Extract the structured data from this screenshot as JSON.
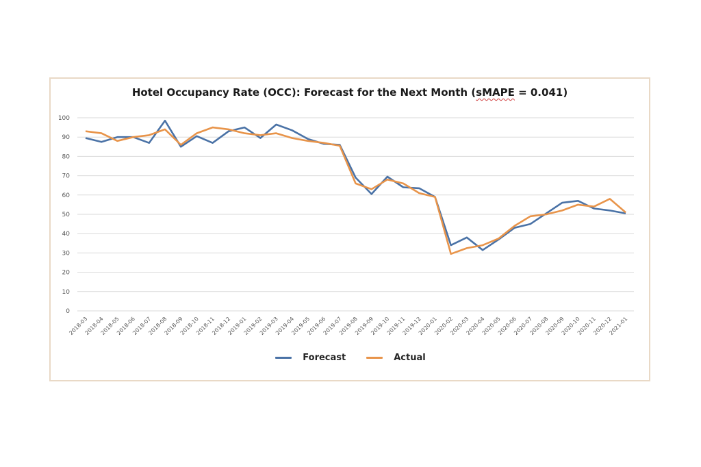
{
  "chart_data": {
    "type": "line",
    "title": "Hotel Occupancy Rate (OCC): Forecast for the Next Month (sMAPE = 0.041)",
    "title_parts": {
      "prefix": "Hotel Occupancy Rate (OCC): Forecast for the Next Month (",
      "underlined": "sMAPE",
      "suffix": " = 0.041)"
    },
    "xlabel": "",
    "ylabel": "",
    "ylim": [
      0,
      100
    ],
    "yticks": [
      0,
      10,
      20,
      30,
      40,
      50,
      60,
      70,
      80,
      90,
      100
    ],
    "grid": true,
    "legend_position": "bottom",
    "x": [
      "2018-03",
      "2018-04",
      "2018-05",
      "2018-06",
      "2018-07",
      "2018-08",
      "2018-09",
      "2018-10",
      "2018-11",
      "2018-12",
      "2019-01",
      "2019-02",
      "2019-03",
      "2019-04",
      "2019-05",
      "2019-06",
      "2019-07",
      "2019-08",
      "2019-09",
      "2019-10",
      "2019-11",
      "2019-12",
      "2020-01",
      "2020-02",
      "2020-03",
      "2020-04",
      "2020-05",
      "2020-06",
      "2020-07",
      "2020-08",
      "2020-09",
      "2020-10",
      "2020-11",
      "2020-12",
      "2021-01"
    ],
    "series": [
      {
        "name": "Forecast",
        "color": "#4a72a6",
        "values": [
          89.5,
          87.5,
          90,
          90,
          87,
          98.5,
          85,
          90.5,
          87,
          93,
          95,
          89.5,
          96.5,
          93.5,
          89,
          86.5,
          86,
          69,
          60.5,
          69.5,
          64,
          63.5,
          59,
          34,
          38,
          31.5,
          37,
          43,
          45,
          50.5,
          56,
          57,
          53,
          52,
          50.5
        ]
      },
      {
        "name": "Actual",
        "color": "#e8944a",
        "values": [
          93,
          92,
          88,
          90,
          91,
          94,
          86,
          92,
          95,
          94,
          92,
          91,
          92,
          89.5,
          88,
          87,
          85.5,
          66,
          63,
          68,
          66,
          61,
          59,
          29.5,
          32.5,
          34,
          37.5,
          44,
          49,
          50,
          52,
          55,
          54,
          58,
          51
        ]
      }
    ]
  },
  "colors": {
    "frame_border": "#e9d9c6",
    "gridline": "#d9d9d9"
  }
}
